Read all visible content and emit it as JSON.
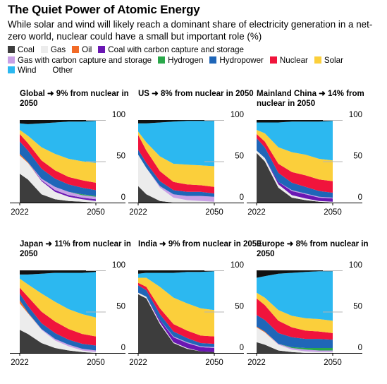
{
  "title": "The Quiet Power of Atomic Energy",
  "subtitle": "While solar and wind will likely reach a dominant share of electricity generation in a net-zero world, nuclear could have a small but important role (%)",
  "legend": [
    {
      "name": "Coal",
      "color": "#3d3d3d"
    },
    {
      "name": "Gas",
      "color": "#ececec"
    },
    {
      "name": "Oil",
      "color": "#f26b27"
    },
    {
      "name": "Coal with carbon capture and storage",
      "color": "#6a17b3"
    },
    {
      "name": "Gas with carbon capture and storage",
      "color": "#c8a0e6"
    },
    {
      "name": "Hydrogen",
      "color": "#2aa84a"
    },
    {
      "name": "Hydropower",
      "color": "#1f66b8"
    },
    {
      "name": "Nuclear",
      "color": "#f0143c"
    },
    {
      "name": "Solar",
      "color": "#fbcf3b"
    },
    {
      "name": "Wind",
      "color": "#2cb8f0"
    },
    {
      "name": "Other",
      "color": "#111111"
    }
  ],
  "chart_data": [
    {
      "type": "area",
      "stacked": true,
      "title": "Global ➜ 9% from nuclear in 2050",
      "x": [
        2022,
        2025,
        2030,
        2035,
        2040,
        2045,
        2050
      ],
      "xticks": [
        "2022",
        "2050"
      ],
      "yticks": [
        "100",
        "50",
        "0"
      ],
      "ylim": [
        0,
        100
      ],
      "series": [
        {
          "name": "Coal",
          "values": [
            35,
            28,
            10,
            4,
            2,
            1,
            0
          ]
        },
        {
          "name": "Gas",
          "values": [
            22,
            20,
            16,
            9,
            5,
            3,
            2
          ]
        },
        {
          "name": "Oil",
          "values": [
            2,
            1,
            0,
            0,
            0,
            0,
            0
          ]
        },
        {
          "name": "Coal with carbon capture and storage",
          "values": [
            0,
            0,
            1,
            2,
            2,
            2,
            2
          ]
        },
        {
          "name": "Gas with carbon capture and storage",
          "values": [
            0,
            0,
            2,
            4,
            4,
            3,
            3
          ]
        },
        {
          "name": "Hydrogen",
          "values": [
            0,
            0,
            0,
            0,
            0,
            1,
            1
          ]
        },
        {
          "name": "Hydropower",
          "values": [
            15,
            14,
            12,
            10,
            9,
            8,
            7
          ]
        },
        {
          "name": "Nuclear",
          "values": [
            9,
            9,
            10,
            10,
            9,
            9,
            9
          ]
        },
        {
          "name": "Solar",
          "values": [
            5,
            9,
            16,
            20,
            22,
            23,
            24
          ]
        },
        {
          "name": "Wind",
          "values": [
            8,
            14,
            29,
            38,
            45,
            48,
            51
          ]
        },
        {
          "name": "Other",
          "values": [
            4,
            5,
            4,
            3,
            2,
            2,
            1
          ]
        }
      ]
    },
    {
      "type": "area",
      "stacked": true,
      "title": "US ➜ 8% from nuclear in 2050",
      "x": [
        2022,
        2025,
        2030,
        2035,
        2040,
        2045,
        2050
      ],
      "xticks": [
        "2022",
        "2050"
      ],
      "yticks": [
        "100",
        "50",
        "0"
      ],
      "ylim": [
        0,
        100
      ],
      "series": [
        {
          "name": "Coal",
          "values": [
            20,
            10,
            2,
            0,
            0,
            0,
            0
          ]
        },
        {
          "name": "Gas",
          "values": [
            38,
            32,
            16,
            6,
            3,
            2,
            1
          ]
        },
        {
          "name": "Oil",
          "values": [
            0,
            0,
            0,
            0,
            0,
            0,
            0
          ]
        },
        {
          "name": "Coal with carbon capture and storage",
          "values": [
            0,
            0,
            0,
            0,
            0,
            0,
            0
          ]
        },
        {
          "name": "Gas with carbon capture and storage",
          "values": [
            0,
            0,
            2,
            4,
            5,
            6,
            6
          ]
        },
        {
          "name": "Hydrogen",
          "values": [
            0,
            0,
            0,
            0,
            0,
            0,
            0
          ]
        },
        {
          "name": "Hydropower",
          "values": [
            6,
            6,
            6,
            5,
            5,
            5,
            4
          ]
        },
        {
          "name": "Nuclear",
          "values": [
            18,
            15,
            12,
            10,
            9,
            8,
            8
          ]
        },
        {
          "name": "Solar",
          "values": [
            4,
            10,
            18,
            22,
            24,
            24,
            25
          ]
        },
        {
          "name": "Wind",
          "values": [
            10,
            23,
            41,
            51,
            53,
            54,
            55
          ]
        },
        {
          "name": "Other",
          "values": [
            4,
            4,
            3,
            2,
            1,
            1,
            1
          ]
        }
      ]
    },
    {
      "type": "area",
      "stacked": true,
      "title": "Mainland China ➜ 14% from nuclear in 2050",
      "x": [
        2022,
        2025,
        2030,
        2035,
        2040,
        2045,
        2050
      ],
      "xticks": [
        "2022",
        "2050"
      ],
      "yticks": [
        "100",
        "50",
        "0"
      ],
      "ylim": [
        0,
        100
      ],
      "series": [
        {
          "name": "Coal",
          "values": [
            60,
            50,
            18,
            6,
            3,
            1,
            0
          ]
        },
        {
          "name": "Gas",
          "values": [
            3,
            4,
            4,
            3,
            2,
            1,
            1
          ]
        },
        {
          "name": "Oil",
          "values": [
            0,
            0,
            0,
            0,
            0,
            0,
            0
          ]
        },
        {
          "name": "Coal with carbon capture and storage",
          "values": [
            0,
            0,
            3,
            5,
            5,
            4,
            4
          ]
        },
        {
          "name": "Gas with carbon capture and storage",
          "values": [
            0,
            0,
            0,
            1,
            1,
            1,
            1
          ]
        },
        {
          "name": "Hydrogen",
          "values": [
            0,
            0,
            0,
            0,
            0,
            0,
            0
          ]
        },
        {
          "name": "Hydropower",
          "values": [
            15,
            13,
            11,
            9,
            8,
            7,
            6
          ]
        },
        {
          "name": "Nuclear",
          "values": [
            5,
            7,
            11,
            13,
            14,
            14,
            14
          ]
        },
        {
          "name": "Solar",
          "values": [
            5,
            10,
            20,
            24,
            25,
            25,
            25
          ]
        },
        {
          "name": "Wind",
          "values": [
            9,
            13,
            30,
            37,
            40,
            45,
            48
          ]
        },
        {
          "name": "Other",
          "values": [
            3,
            3,
            3,
            2,
            2,
            2,
            1
          ]
        }
      ]
    },
    {
      "type": "area",
      "stacked": true,
      "title": "Japan ➜ 11% from nuclear in 2050",
      "x": [
        2022,
        2025,
        2030,
        2035,
        2040,
        2045,
        2050
      ],
      "xticks": [
        "2022",
        "2050"
      ],
      "yticks": [
        "100",
        "50",
        "0"
      ],
      "ylim": [
        0,
        100
      ],
      "series": [
        {
          "name": "Coal",
          "values": [
            28,
            23,
            12,
            6,
            3,
            1,
            0
          ]
        },
        {
          "name": "Gas",
          "values": [
            32,
            25,
            16,
            9,
            5,
            2,
            1
          ]
        },
        {
          "name": "Oil",
          "values": [
            4,
            1,
            0,
            0,
            0,
            0,
            0
          ]
        },
        {
          "name": "Coal with carbon capture and storage",
          "values": [
            0,
            0,
            0,
            0,
            0,
            0,
            0
          ]
        },
        {
          "name": "Gas with carbon capture and storage",
          "values": [
            0,
            0,
            1,
            2,
            2,
            2,
            2
          ]
        },
        {
          "name": "Hydrogen",
          "values": [
            0,
            0,
            0,
            0,
            0,
            0,
            0
          ]
        },
        {
          "name": "Hydropower",
          "values": [
            8,
            8,
            7,
            7,
            6,
            6,
            6
          ]
        },
        {
          "name": "Nuclear",
          "values": [
            7,
            11,
            14,
            14,
            13,
            12,
            11
          ]
        },
        {
          "name": "Solar",
          "values": [
            11,
            15,
            22,
            24,
            24,
            24,
            23
          ]
        },
        {
          "name": "Wind",
          "values": [
            5,
            12,
            24,
            35,
            44,
            50,
            55
          ]
        },
        {
          "name": "Other",
          "values": [
            5,
            5,
            4,
            3,
            3,
            3,
            2
          ]
        }
      ]
    },
    {
      "type": "area",
      "stacked": true,
      "title": "India ➜ 9% from nuclear in 2050",
      "x": [
        2022,
        2025,
        2030,
        2035,
        2040,
        2045,
        2050
      ],
      "xticks": [
        "2022",
        "2050"
      ],
      "yticks": [
        "100",
        "50",
        "0"
      ],
      "ylim": [
        0,
        100
      ],
      "series": [
        {
          "name": "Coal",
          "values": [
            71,
            66,
            35,
            12,
            5,
            2,
            1
          ]
        },
        {
          "name": "Gas",
          "values": [
            2,
            2,
            2,
            1,
            1,
            0,
            0
          ]
        },
        {
          "name": "Oil",
          "values": [
            0,
            0,
            0,
            0,
            0,
            0,
            0
          ]
        },
        {
          "name": "Coal with carbon capture and storage",
          "values": [
            0,
            0,
            3,
            6,
            6,
            5,
            5
          ]
        },
        {
          "name": "Gas with carbon capture and storage",
          "values": [
            0,
            0,
            0,
            1,
            1,
            1,
            1
          ]
        },
        {
          "name": "Hydrogen",
          "values": [
            0,
            0,
            0,
            0,
            0,
            0,
            0
          ]
        },
        {
          "name": "Hydropower",
          "values": [
            9,
            8,
            7,
            6,
            5,
            4,
            4
          ]
        },
        {
          "name": "Nuclear",
          "values": [
            3,
            4,
            7,
            9,
            9,
            9,
            9
          ]
        },
        {
          "name": "Solar",
          "values": [
            6,
            11,
            26,
            32,
            33,
            33,
            32
          ]
        },
        {
          "name": "Wind",
          "values": [
            5,
            6,
            17,
            30,
            38,
            44,
            47
          ]
        },
        {
          "name": "Other",
          "values": [
            4,
            3,
            3,
            3,
            2,
            2,
            1
          ]
        }
      ]
    },
    {
      "type": "area",
      "stacked": true,
      "title": "Europe ➜ 8% from nuclear in 2050",
      "x": [
        2022,
        2025,
        2030,
        2035,
        2040,
        2045,
        2050
      ],
      "xticks": [
        "2022",
        "2050"
      ],
      "yticks": [
        "100",
        "50",
        "0"
      ],
      "ylim": [
        0,
        100
      ],
      "series": [
        {
          "name": "Coal",
          "values": [
            13,
            10,
            3,
            1,
            0,
            0,
            0
          ]
        },
        {
          "name": "Gas",
          "values": [
            18,
            15,
            7,
            3,
            2,
            1,
            1
          ]
        },
        {
          "name": "Oil",
          "values": [
            1,
            1,
            0,
            0,
            0,
            0,
            0
          ]
        },
        {
          "name": "Coal with carbon capture and storage",
          "values": [
            0,
            0,
            0,
            0,
            0,
            0,
            0
          ]
        },
        {
          "name": "Gas with carbon capture and storage",
          "values": [
            0,
            0,
            1,
            2,
            2,
            2,
            2
          ]
        },
        {
          "name": "Hydrogen",
          "values": [
            0,
            0,
            0,
            1,
            2,
            3,
            3
          ]
        },
        {
          "name": "Hydropower",
          "values": [
            14,
            14,
            13,
            12,
            11,
            11,
            10
          ]
        },
        {
          "name": "Nuclear",
          "values": [
            20,
            18,
            15,
            12,
            10,
            9,
            8
          ]
        },
        {
          "name": "Solar",
          "values": [
            7,
            9,
            13,
            14,
            15,
            15,
            15
          ]
        },
        {
          "name": "Wind",
          "values": [
            18,
            26,
            44,
            52,
            56,
            58,
            60
          ]
        },
        {
          "name": "Other",
          "values": [
            9,
            7,
            4,
            3,
            2,
            1,
            1
          ]
        }
      ]
    }
  ]
}
